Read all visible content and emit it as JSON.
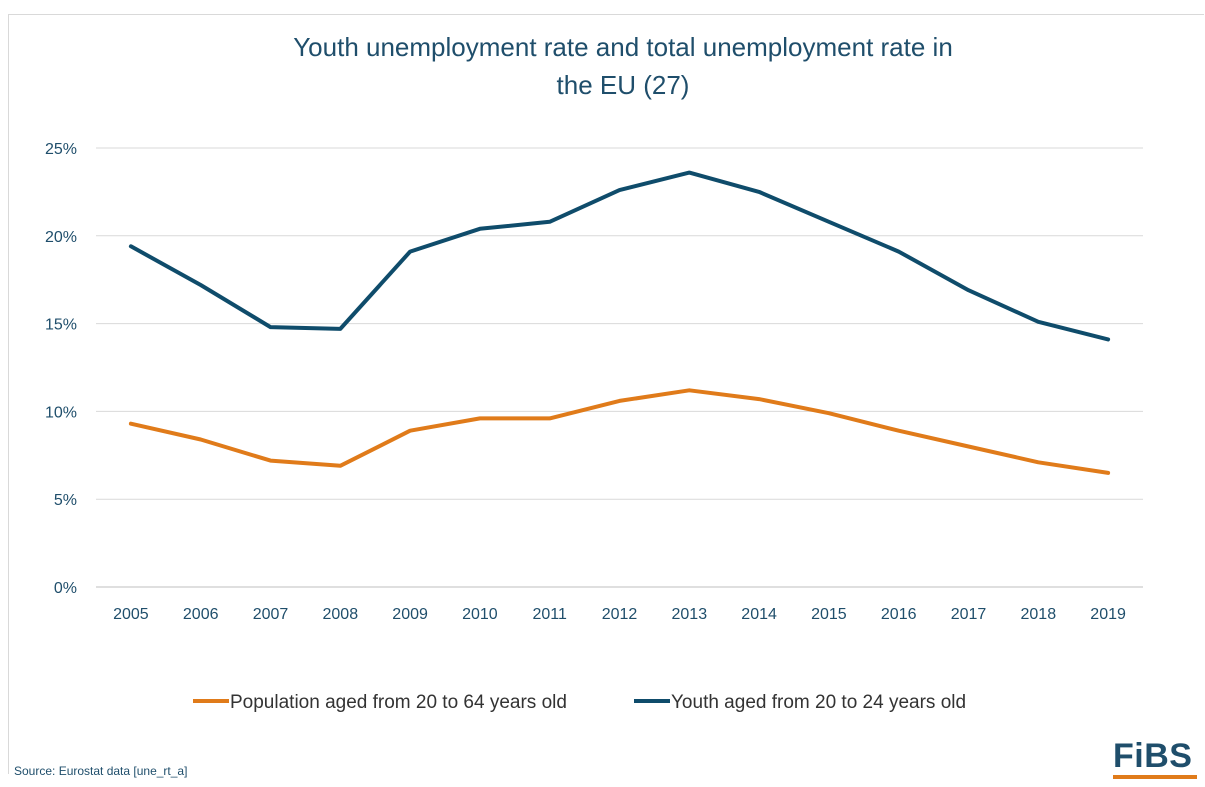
{
  "source_note": "Source: Eurostat data [une_rt_a]",
  "logo_text": "FiBS",
  "chart_data": {
    "type": "line",
    "title_line1": "Youth unemployment rate and total unemployment rate in",
    "title_line2": "the EU (27)",
    "xlabel": "",
    "ylabel": "",
    "categories": [
      "2005",
      "2006",
      "2007",
      "2008",
      "2009",
      "2010",
      "2011",
      "2012",
      "2013",
      "2014",
      "2015",
      "2016",
      "2017",
      "2018",
      "2019"
    ],
    "ylim": [
      0,
      25
    ],
    "yticks": [
      0,
      5,
      10,
      15,
      20,
      25
    ],
    "ytick_labels": [
      "0%",
      "5%",
      "10%",
      "15%",
      "20%",
      "25%"
    ],
    "grid": true,
    "legend_position": "bottom",
    "series": [
      {
        "name": "Population aged from 20 to 64 years old",
        "color": "#e07b1a",
        "values": [
          9.3,
          8.4,
          7.2,
          6.9,
          8.9,
          9.6,
          9.6,
          10.6,
          11.2,
          10.7,
          9.9,
          8.9,
          8.0,
          7.1,
          6.5
        ]
      },
      {
        "name": "Youth aged from 20 to 24 years old",
        "color": "#0f4c6b",
        "values": [
          19.4,
          17.2,
          14.8,
          14.7,
          19.1,
          20.4,
          20.8,
          22.6,
          23.6,
          22.5,
          20.8,
          19.1,
          16.9,
          15.1,
          14.1
        ]
      }
    ]
  }
}
